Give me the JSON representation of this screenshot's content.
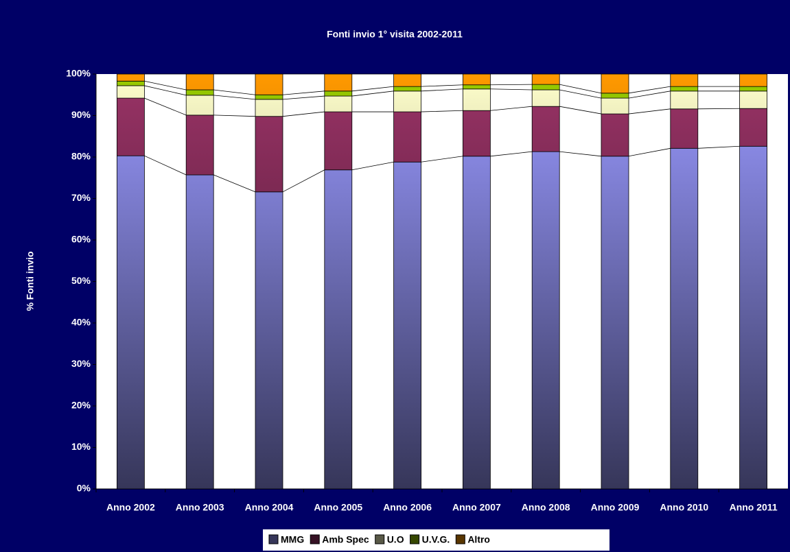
{
  "chart_data": {
    "type": "stacked_bar_100",
    "title": "Fonti invio 1° visita 2002-2011",
    "y_label": "% Fonti invio",
    "categories": [
      "Anno 2002",
      "Anno 2003",
      "Anno 2004",
      "Anno 2005",
      "Anno 2006",
      "Anno 2007",
      "Anno 2008",
      "Anno 2009",
      "Anno 2010",
      "Anno 2011"
    ],
    "series": [
      {
        "name": "MMG",
        "color": "#9999ff",
        "values": [
          80.3,
          75.7,
          71.6,
          76.9,
          78.8,
          80.2,
          81.3,
          80.2,
          82.1,
          82.6
        ]
      },
      {
        "name": "Amb Spec",
        "color": "#993366",
        "values": [
          13.9,
          14.4,
          18.2,
          14.0,
          12.1,
          11.0,
          10.9,
          10.2,
          9.5,
          9.1
        ]
      },
      {
        "name": "U.O",
        "color": "#ffffcc",
        "values": [
          3.0,
          4.8,
          4.1,
          3.8,
          5.0,
          5.2,
          4.0,
          3.8,
          4.3,
          4.2
        ]
      },
      {
        "name": "U.V.G.",
        "color": "#99cc00",
        "values": [
          1.1,
          1.3,
          1.1,
          1.2,
          1.1,
          1.0,
          1.3,
          1.2,
          1.1,
          1.1
        ]
      },
      {
        "name": "Altro",
        "color": "#ff9900",
        "values": [
          1.7,
          3.8,
          5.0,
          4.1,
          3.0,
          2.6,
          2.5,
          4.6,
          3.0,
          3.0
        ]
      }
    ],
    "ylim": [
      0,
      100
    ],
    "yticks": [
      {
        "value": 0,
        "label": "0%"
      },
      {
        "value": 10,
        "label": "10%"
      },
      {
        "value": 20,
        "label": "20%"
      },
      {
        "value": 30,
        "label": "30%"
      },
      {
        "value": 40,
        "label": "40%"
      },
      {
        "value": 50,
        "label": "50%"
      },
      {
        "value": 60,
        "label": "60%"
      },
      {
        "value": 70,
        "label": "70%"
      },
      {
        "value": 80,
        "label": "80%"
      },
      {
        "value": 90,
        "label": "90%"
      },
      {
        "value": 100,
        "label": "100%"
      }
    ],
    "legend": "bottom",
    "series_lines": true
  }
}
